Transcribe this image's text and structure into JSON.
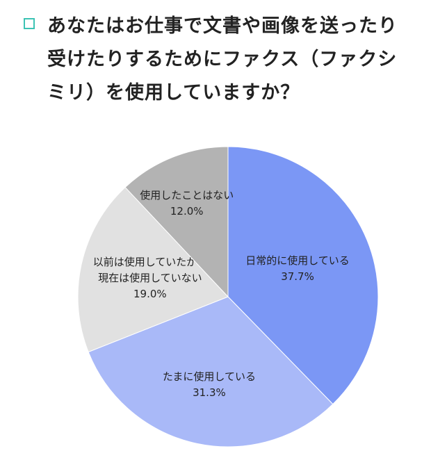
{
  "question": {
    "lines": [
      "あなたはお仕事で文書や画像を送ったり",
      "受けたりするためにファクス（ファクシ",
      "ミリ）を使用していますか？"
    ]
  },
  "colors": {
    "checkbox": "#3cc3b4",
    "slice_0": "#7b97f5",
    "slice_1": "#a9b9f8",
    "slice_2": "#e1e1e1",
    "slice_3": "#b3b3b3"
  },
  "chart_data": {
    "type": "pie",
    "slices": [
      {
        "label": [
          "日常的に使用している"
        ],
        "value": 37.7,
        "value_label": "37.7%",
        "color": "#7b97f5"
      },
      {
        "label": [
          "たまに使用している"
        ],
        "value": 31.3,
        "value_label": "31.3%",
        "color": "#a9b9f8"
      },
      {
        "label": [
          "以前は使用していたが、",
          "現在は使用していない"
        ],
        "value": 19.0,
        "value_label": "19.0%",
        "color": "#e1e1e1"
      },
      {
        "label": [
          "使用したことはない"
        ],
        "value": 12.0,
        "value_label": "12.0%",
        "color": "#b3b3b3"
      }
    ],
    "start": "top",
    "direction": "clockwise"
  }
}
